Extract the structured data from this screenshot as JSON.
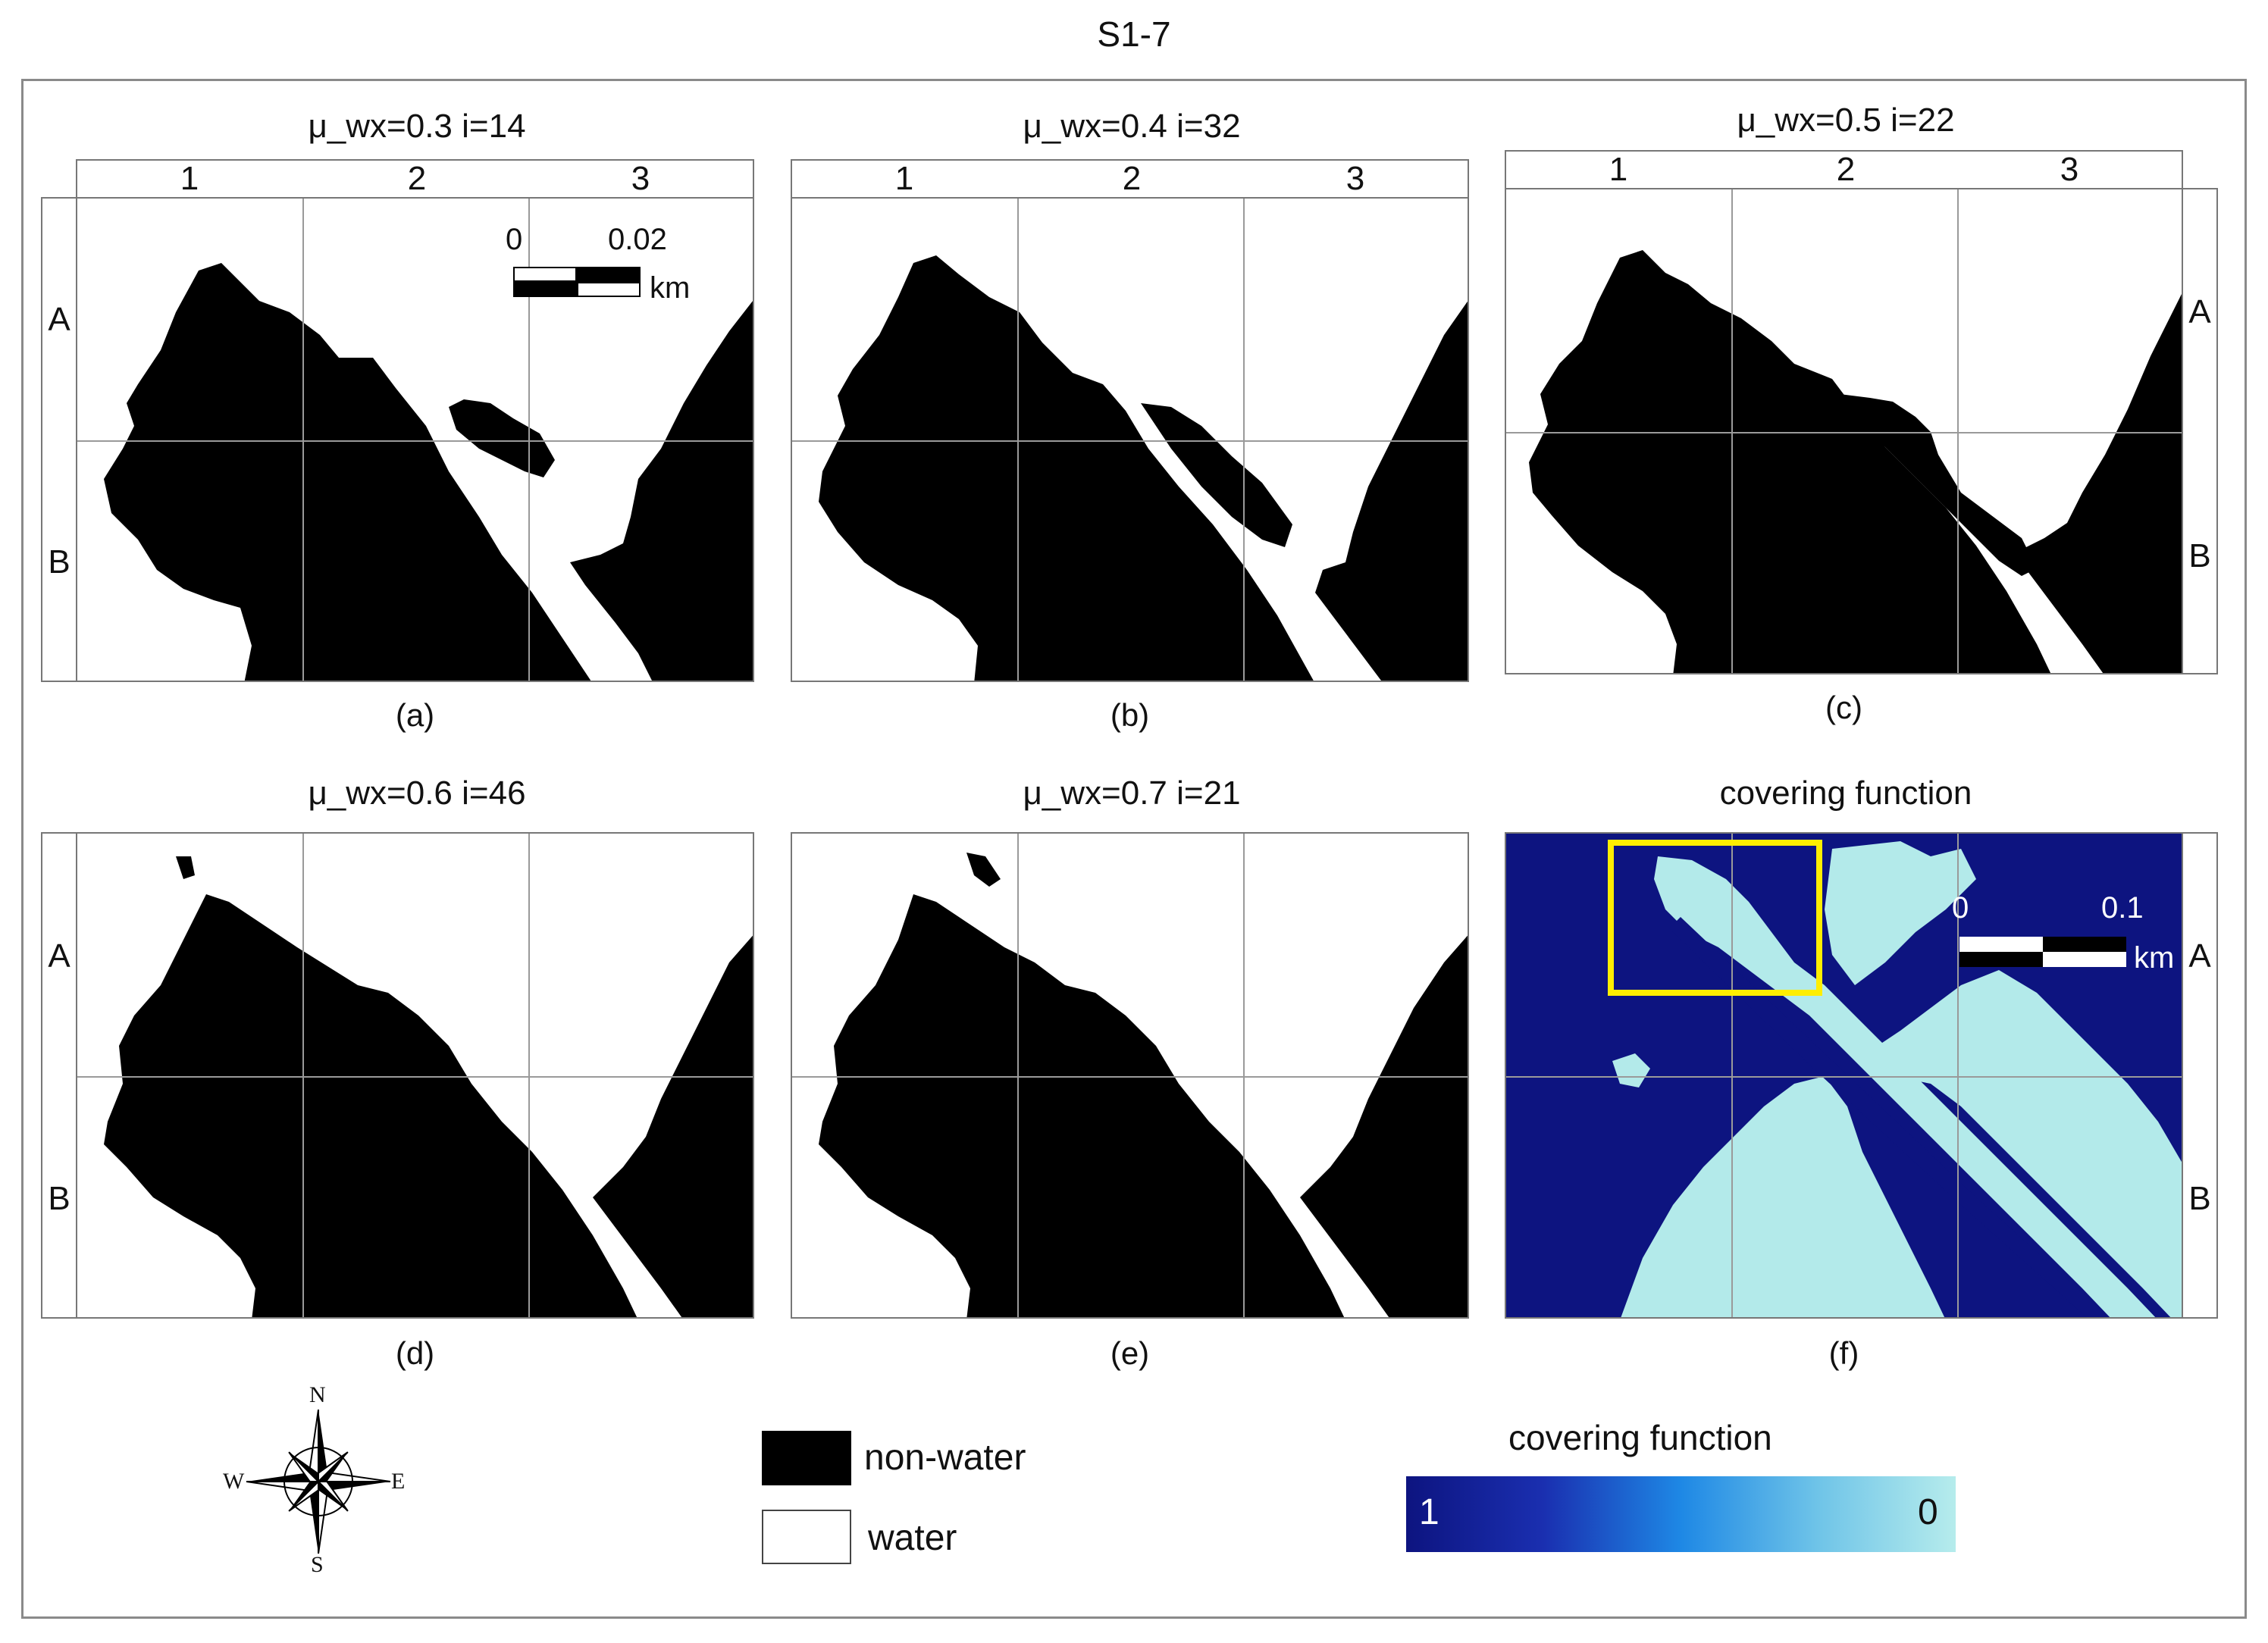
{
  "figure_title": "S1-7",
  "panels": [
    {
      "title": "μ_wx=0.3  i=14",
      "caption": "(a)"
    },
    {
      "title": "μ_wx=0.4  i=32",
      "caption": "(b)"
    },
    {
      "title": "μ_wx=0.5  i=22",
      "caption": "(c)"
    },
    {
      "title": "μ_wx=0.6  i=46",
      "caption": "(d)"
    },
    {
      "title": "μ_wx=0.7  i=21",
      "caption": "(e)"
    },
    {
      "title": "covering function",
      "caption": "(f)"
    }
  ],
  "grid": {
    "columns": [
      "1",
      "2",
      "3"
    ],
    "rows": [
      "A",
      "B"
    ]
  },
  "scalebar_small": {
    "start": "0",
    "end": "0.02",
    "unit": "km"
  },
  "scalebar_large": {
    "start": "0",
    "end": "0.1",
    "unit": "km"
  },
  "compass": {
    "n": "N",
    "s": "S",
    "e": "E",
    "w": "W"
  },
  "legend": {
    "nonwater": "non-water",
    "water": "water"
  },
  "colorbar": {
    "title": "covering function",
    "min_label": "1",
    "max_label": "0",
    "colors": [
      "#0d1480",
      "#1a2fb0",
      "#1e88e5",
      "#6fc4e8",
      "#b6ecec"
    ]
  },
  "colors": {
    "nonwater": "#000000",
    "water": "#ffffff",
    "land_f": "#0d1480",
    "water_f": "#b3eaea",
    "highlight": "#ffee00"
  }
}
